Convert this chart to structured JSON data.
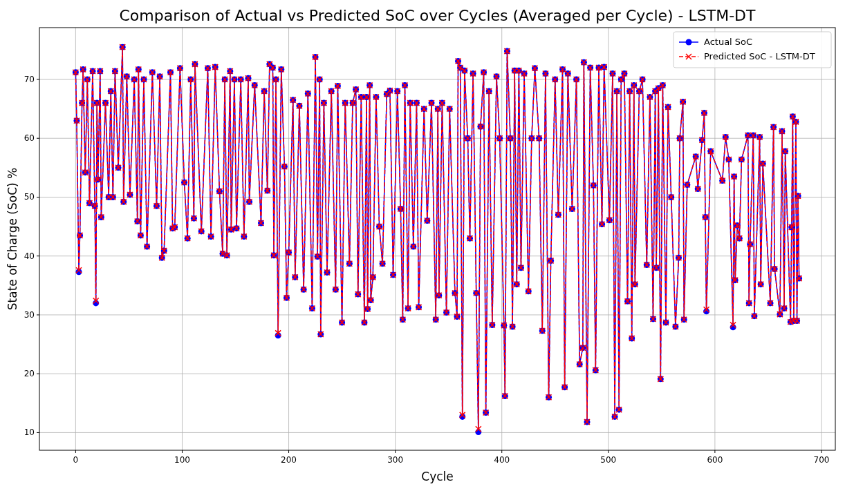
{
  "chart_data": {
    "type": "line",
    "title": "Comparison of Actual vs Predicted SoC over Cycles (Averaged per Cycle) - LSTM-DT",
    "xlabel": "Cycle",
    "ylabel": "State of Charge (SoC) %",
    "xlim": [
      -34,
      713
    ],
    "ylim": [
      7,
      78.8
    ],
    "xticks": [
      0,
      100,
      200,
      300,
      400,
      500,
      600,
      700
    ],
    "yticks": [
      10,
      20,
      30,
      40,
      50,
      60,
      70
    ],
    "grid": true,
    "legend": "top right",
    "x": [
      0,
      1,
      3,
      4,
      6,
      7,
      9,
      11,
      13,
      16,
      18,
      19,
      20,
      21,
      23,
      24,
      28,
      31,
      33,
      35,
      37,
      40,
      44,
      45,
      48,
      51,
      55,
      58,
      59,
      61,
      64,
      67,
      72,
      76,
      79,
      81,
      83,
      89,
      91,
      93,
      98,
      102,
      105,
      108,
      111,
      112,
      118,
      124,
      127,
      131,
      135,
      138,
      140,
      142,
      145,
      146,
      149,
      151,
      155,
      158,
      162,
      163,
      168,
      174,
      177,
      180,
      182,
      185,
      186,
      188,
      190,
      193,
      196,
      198,
      200,
      204,
      206,
      210,
      214,
      218,
      222,
      225,
      227,
      229,
      230,
      233,
      236,
      240,
      244,
      246,
      250,
      253,
      257,
      260,
      263,
      265,
      268,
      271,
      273,
      274,
      276,
      277,
      279,
      282,
      285,
      288,
      292,
      295,
      298,
      302,
      305,
      307,
      309,
      312,
      314,
      317,
      320,
      322,
      327,
      330,
      334,
      338,
      340,
      341,
      344,
      348,
      351,
      356,
      358,
      359,
      361,
      363,
      365,
      368,
      370,
      373,
      376,
      378,
      380,
      383,
      385,
      388,
      391,
      395,
      398,
      402,
      403,
      405,
      408,
      410,
      412,
      414,
      416,
      418,
      421,
      425,
      428,
      431,
      435,
      438,
      441,
      444,
      446,
      450,
      453,
      457,
      459,
      462,
      466,
      470,
      473,
      476,
      477,
      480,
      483,
      486,
      488,
      491,
      494,
      496,
      501,
      504,
      506,
      508,
      510,
      512,
      515,
      518,
      520,
      522,
      524,
      525,
      529,
      532,
      536,
      539,
      542,
      544,
      545,
      547,
      549,
      551,
      554,
      556,
      559,
      563,
      566,
      567,
      570,
      571,
      574,
      582,
      584,
      588,
      590,
      591,
      592,
      596,
      607,
      610,
      613,
      617,
      618,
      619,
      621,
      623,
      625,
      631,
      632,
      633,
      636,
      637,
      642,
      643,
      645,
      652,
      655,
      656,
      661,
      663,
      665,
      666,
      671,
      672,
      673,
      674,
      676,
      677,
      678,
      679
    ],
    "series": [
      {
        "name": "Actual SoC",
        "color": "#0000ff",
        "marker": "circle",
        "line_style": "solid",
        "values": [
          71.2,
          63,
          37.3,
          43.5,
          66,
          71.7,
          54.2,
          70,
          49,
          71.4,
          48.5,
          32,
          66,
          53,
          71.4,
          46.6,
          66,
          50,
          68,
          50,
          71.4,
          55,
          75.5,
          49.2,
          70.5,
          50.4,
          70,
          45.9,
          71.7,
          43.5,
          70,
          41.6,
          71.2,
          48.5,
          70.5,
          39.7,
          40.9,
          71.2,
          44.7,
          44.9,
          71.9,
          52.5,
          43,
          70,
          46.4,
          72.6,
          44.2,
          71.9,
          43.3,
          72.1,
          51,
          40.4,
          70,
          40.1,
          71.4,
          44.5,
          70,
          44.7,
          70,
          43.3,
          70.2,
          49.2,
          69,
          45.6,
          68,
          51.1,
          72.6,
          72,
          40.1,
          70,
          26.5,
          71.7,
          55.2,
          32.9,
          40.6,
          66.5,
          36.4,
          65.5,
          34.3,
          67.6,
          31.1,
          73.8,
          39.9,
          70,
          26.7,
          66,
          37.2,
          68,
          34.3,
          68.9,
          28.7,
          66,
          38.7,
          66,
          68.3,
          33.5,
          67,
          28.7,
          67,
          31,
          69,
          32.5,
          36.4,
          67,
          45,
          38.7,
          67.5,
          68.1,
          36.8,
          68,
          48,
          29.2,
          69,
          31.1,
          66,
          41.6,
          66,
          31.3,
          65,
          46,
          66,
          29.2,
          65,
          33.3,
          66,
          30.4,
          65,
          33.7,
          29.7,
          73.1,
          72,
          12.7,
          71.5,
          60,
          43,
          71,
          33.7,
          10.1,
          62,
          71.2,
          13.4,
          68,
          28.3,
          70.5,
          60,
          28.2,
          16.2,
          74.8,
          60,
          28,
          71.5,
          35.2,
          71.5,
          38,
          71,
          34,
          60,
          71.9,
          60,
          27.3,
          71,
          16,
          39.2,
          70,
          47,
          71.7,
          17.7,
          71,
          48,
          70,
          21.6,
          24.4,
          72.9,
          11.8,
          72,
          52,
          20.6,
          72,
          45.4,
          72.1,
          46.1,
          71,
          12.7,
          68,
          13.9,
          70,
          71,
          32.3,
          68,
          26,
          69,
          35.2,
          68,
          70,
          38.5,
          67,
          29.3,
          68,
          38,
          68.5,
          19.1,
          69,
          28.7,
          65.3,
          50,
          28,
          39.7,
          60,
          66.2,
          29.2,
          52.1,
          56.9,
          51.4,
          59.7,
          64.3,
          46.6,
          30.6,
          57.8,
          52.8,
          60.2,
          56.4,
          27.9,
          53.5,
          35.9,
          45.2,
          43,
          56.4,
          60.5,
          32,
          42,
          60.5,
          29.8,
          60.2,
          35.2,
          55.7,
          32,
          61.9,
          37.8,
          30.1,
          61.2,
          31.1,
          57.8,
          28.8,
          44.9,
          63.7,
          29,
          62.8,
          29,
          50.2,
          36.2
        ]
      },
      {
        "name": "Predicted SoC - LSTM-DT",
        "color": "#ff0000",
        "marker": "cross",
        "line_style": "dashed",
        "values": [
          71.2,
          63,
          37.6,
          43.5,
          66,
          71.7,
          54.2,
          70,
          49,
          71.4,
          48.5,
          32.4,
          66,
          53,
          71.4,
          46.6,
          66,
          50,
          68,
          50,
          71.4,
          55,
          75.5,
          49.2,
          70.5,
          50.4,
          70,
          45.9,
          71.7,
          43.5,
          70,
          41.6,
          71.2,
          48.5,
          70.5,
          39.7,
          40.9,
          71.2,
          44.7,
          44.9,
          71.9,
          52.5,
          43,
          70,
          46.4,
          72.6,
          44.2,
          71.9,
          43.3,
          72.1,
          51,
          40.4,
          70,
          40.1,
          71.4,
          44.5,
          70,
          44.7,
          70,
          43.3,
          70.2,
          49.2,
          69,
          45.6,
          68,
          51.1,
          72.6,
          72,
          40.1,
          70,
          26.9,
          71.7,
          55.2,
          32.9,
          40.6,
          66.5,
          36.4,
          65.5,
          34.3,
          67.6,
          31.1,
          73.8,
          39.9,
          70,
          26.7,
          66,
          37.2,
          68,
          34.3,
          68.9,
          28.7,
          66,
          38.7,
          66,
          68.3,
          33.5,
          67,
          28.7,
          67,
          31,
          69,
          32.5,
          36.4,
          67,
          45,
          38.7,
          67.5,
          68.1,
          36.8,
          68,
          48,
          29.2,
          69,
          31.1,
          66,
          41.6,
          66,
          31.3,
          65,
          46,
          66,
          29.2,
          65,
          33.3,
          66,
          30.4,
          65,
          33.7,
          29.7,
          73.1,
          72,
          13,
          71.5,
          60,
          43,
          71,
          33.7,
          10.6,
          62,
          71.2,
          13.4,
          68,
          28.3,
          70.5,
          60,
          28.2,
          16.2,
          74.8,
          60,
          28,
          71.5,
          35.2,
          71.5,
          38,
          71,
          34,
          60,
          71.9,
          60,
          27.3,
          71,
          16,
          39.2,
          70,
          47,
          71.7,
          17.7,
          71,
          48,
          70,
          21.6,
          24.4,
          72.9,
          11.8,
          72,
          52,
          20.6,
          72,
          45.4,
          72.1,
          46.1,
          71,
          12.7,
          68,
          13.9,
          70,
          71,
          32.3,
          68,
          26,
          69,
          35.2,
          68,
          70,
          38.5,
          67,
          29.3,
          68,
          38,
          68.5,
          19.1,
          69,
          28.7,
          65.3,
          50,
          28,
          39.7,
          60,
          66.2,
          29.2,
          52.1,
          56.9,
          51.4,
          59.7,
          64.3,
          46.6,
          30.9,
          57.8,
          52.8,
          60.2,
          56.4,
          28.3,
          53.5,
          35.9,
          45.2,
          43,
          56.4,
          60.5,
          32,
          42,
          60.5,
          29.8,
          60.2,
          35.2,
          55.7,
          32,
          61.9,
          37.8,
          30.1,
          61.2,
          31.1,
          57.8,
          28.8,
          44.9,
          63.7,
          29,
          62.8,
          29,
          50.2,
          36.2
        ]
      }
    ]
  }
}
